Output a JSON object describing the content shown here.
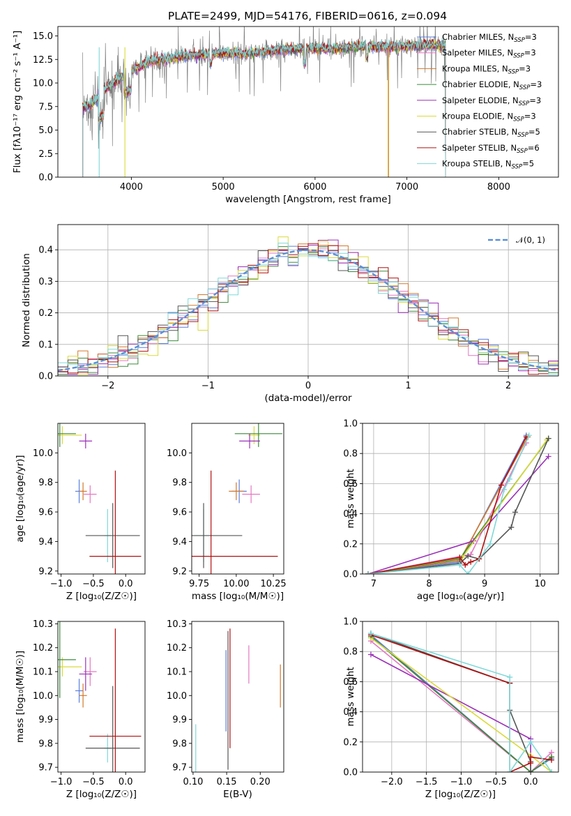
{
  "figure": {
    "title": "PLATE=2499, MJD=54176, FIBERID=0616, z=0.094"
  },
  "colors": {
    "Chabrier MILES": "#5b7fdc",
    "Salpeter MILES": "#e377c2",
    "Kroupa MILES": "#d2782d",
    "Chabrier ELODIE": "#3a8a3a",
    "Salpeter ELODIE": "#9b30b8",
    "Kroupa ELODIE": "#dada3a",
    "Chabrier STELIB": "#555555",
    "Salpeter STELIB": "#b01010",
    "Kroupa STELIB": "#7fd8d8",
    "data": "#808080",
    "normal": "#5b8fd6",
    "grid": "#b0b0b0"
  },
  "chart_data": [
    {
      "id": "spectrum",
      "type": "line",
      "title": "PLATE=2499, MJD=54176, FIBERID=0616, z=0.094",
      "xlabel": "wavelength [Angstrom, rest frame]",
      "ylabel": "Flux [fλ10⁻¹⁷ erg cm⁻² s⁻¹ A⁻¹]",
      "xlim": [
        3200,
        8650
      ],
      "ylim": [
        0,
        16
      ],
      "xticks": [
        4000,
        5000,
        6000,
        7000,
        8000
      ],
      "yticks": [
        0.0,
        2.5,
        5.0,
        7.5,
        10.0,
        12.5,
        15.0
      ],
      "grid": false,
      "legend_position": "upper-right",
      "data_range": [
        3470,
        7420
      ],
      "continuum": {
        "x": [
          3470,
          3550,
          3650,
          3750,
          3850,
          3950,
          4050,
          4200,
          4400,
          4600,
          4800,
          5000,
          5200,
          5400,
          5600,
          5800,
          6000,
          6200,
          6400,
          6600,
          6800,
          7000,
          7200,
          7420
        ],
        "y": [
          7.4,
          7.7,
          8.6,
          9.6,
          10.3,
          11.0,
          11.6,
          12.3,
          12.6,
          12.9,
          13.0,
          13.2,
          13.1,
          13.3,
          13.5,
          13.6,
          13.7,
          13.6,
          13.8,
          13.9,
          13.8,
          13.9,
          14.0,
          14.0
        ]
      },
      "series": [
        {
          "name": "Chabrier MILES, N_SSP=3",
          "label_main": "Chabrier MILES, N",
          "label_sub": "SSP",
          "label_end": "=3"
        },
        {
          "name": "Salpeter MILES, N_SSP=3",
          "label_main": "Salpeter MILES, N",
          "label_sub": "SSP",
          "label_end": "=3"
        },
        {
          "name": "Kroupa MILES, N_SSP=3",
          "label_main": "Kroupa MILES, N",
          "label_sub": "SSP",
          "label_end": "=3"
        },
        {
          "name": "Chabrier ELODIE, N_SSP=3",
          "label_main": "Chabrier ELODIE, N",
          "label_sub": "SSP",
          "label_end": "=3"
        },
        {
          "name": "Salpeter ELODIE, N_SSP=3",
          "label_main": "Salpeter ELODIE, N",
          "label_sub": "SSP",
          "label_end": "=3"
        },
        {
          "name": "Kroupa ELODIE, N_SSP=3",
          "label_main": "Kroupa ELODIE, N",
          "label_sub": "SSP",
          "label_end": "=3"
        },
        {
          "name": "Chabrier STELIB, N_SSP=5",
          "label_main": "Chabrier STELIB, N",
          "label_sub": "SSP",
          "label_end": "=5"
        },
        {
          "name": "Salpeter STELIB, N_SSP=6",
          "label_main": "Salpeter STELIB, N",
          "label_sub": "SSP",
          "label_end": "=6"
        },
        {
          "name": "Kroupa STELIB, N_SSP=5",
          "label_main": "Kroupa STELIB, N",
          "label_sub": "SSP",
          "label_end": "=5"
        }
      ]
    },
    {
      "id": "residuals",
      "type": "histogram",
      "xlabel": "(data-model)/error",
      "ylabel": "Normed distribution",
      "xlim": [
        -2.5,
        2.5
      ],
      "ylim": [
        0,
        0.48
      ],
      "xticks": [
        -2,
        -1,
        0,
        1,
        2
      ],
      "yticks": [
        0.0,
        0.1,
        0.2,
        0.3,
        0.4
      ],
      "grid": true,
      "legend_position": "upper-right",
      "bin_width": 0.1,
      "normal_label": "𝒩(0, 1)",
      "series_count": 9
    },
    {
      "id": "age_vs_Z",
      "type": "errorbar",
      "xlabel": "Z [log₁₀(Z/Z☉)]",
      "ylabel": "age  [log₁₀(age/yr)]",
      "xlim": [
        -1.05,
        0.3
      ],
      "ylim": [
        9.18,
        10.2
      ],
      "xticks": [
        -1.0,
        -0.5,
        0.0
      ],
      "yticks": [
        9.2,
        9.4,
        9.6,
        9.8,
        10.0
      ],
      "grid": false,
      "points": [
        {
          "series": "Chabrier MILES",
          "x": -0.72,
          "xerr": 0.06,
          "y": 9.74,
          "yerr": 0.08
        },
        {
          "series": "Kroupa MILES",
          "x": -0.66,
          "xerr": 0.06,
          "y": 9.74,
          "yerr": 0.06
        },
        {
          "series": "Salpeter MILES",
          "x": -0.55,
          "xerr": 0.1,
          "y": 9.72,
          "yerr": 0.06
        },
        {
          "series": "Kroupa ELODIE",
          "x": -0.98,
          "xerr": 0.3,
          "y": 10.12,
          "yerr": 0.06
        },
        {
          "series": "Chabrier ELODIE",
          "x": -1.02,
          "xerr": 0.25,
          "y": 10.13,
          "yerr": 0.09
        },
        {
          "series": "Salpeter ELODIE",
          "x": -0.62,
          "xerr": 0.1,
          "y": 10.08,
          "yerr": 0.05
        },
        {
          "series": "Kroupa STELIB",
          "x": -0.28,
          "xerr": 0.05,
          "y": 9.44,
          "yerr": 0.18
        },
        {
          "series": "Chabrier STELIB",
          "x": -0.2,
          "xerr": 0.42,
          "y": 9.44,
          "yerr": 0.22
        },
        {
          "series": "Salpeter STELIB",
          "x": -0.16,
          "xerr": 0.4,
          "y": 9.3,
          "yerr": 0.58
        }
      ]
    },
    {
      "id": "age_vs_mass",
      "type": "errorbar",
      "xlabel": "mass [log₁₀(M/M☉)]",
      "xlim": [
        9.7,
        10.32
      ],
      "ylim": [
        9.18,
        10.2
      ],
      "xticks": [
        9.75,
        10.0,
        10.25
      ],
      "yticks": [
        9.2,
        9.4,
        9.6,
        9.8,
        10.0
      ],
      "grid": false,
      "points": [
        {
          "series": "Chabrier MILES",
          "x": 10.02,
          "xerr": 0.05,
          "y": 9.74,
          "yerr": 0.08
        },
        {
          "series": "Kroupa MILES",
          "x": 10.0,
          "xerr": 0.05,
          "y": 9.74,
          "yerr": 0.06
        },
        {
          "series": "Salpeter MILES",
          "x": 10.1,
          "xerr": 0.06,
          "y": 9.72,
          "yerr": 0.06
        },
        {
          "series": "Kroupa ELODIE",
          "x": 10.12,
          "xerr": 0.04,
          "y": 10.12,
          "yerr": 0.06
        },
        {
          "series": "Chabrier ELODIE",
          "x": 10.15,
          "xerr": 0.16,
          "y": 10.13,
          "yerr": 0.09
        },
        {
          "series": "Salpeter ELODIE",
          "x": 10.09,
          "xerr": 0.07,
          "y": 10.08,
          "yerr": 0.05
        },
        {
          "series": "Kroupa STELIB",
          "x": 9.78,
          "xerr": 0.06,
          "y": 9.44,
          "yerr": 0.18
        },
        {
          "series": "Chabrier STELIB",
          "x": 9.78,
          "xerr": 0.26,
          "y": 9.44,
          "yerr": 0.22
        },
        {
          "series": "Salpeter STELIB",
          "x": 9.83,
          "xerr": 0.45,
          "y": 9.3,
          "yerr": 0.58
        }
      ]
    },
    {
      "id": "massweight_vs_age",
      "type": "line",
      "xlabel": "age  [log₁₀(age/yr)]",
      "ylabel": "mass weight",
      "xlim": [
        6.8,
        10.33
      ],
      "ylim": [
        0,
        1
      ],
      "xticks": [
        7,
        8,
        9,
        10
      ],
      "yticks": [
        0.0,
        0.2,
        0.4,
        0.6,
        0.8,
        1.0
      ],
      "grid": true,
      "series": [
        {
          "series": "Chabrier MILES",
          "x": [
            6.9,
            8.55,
            9.75
          ],
          "y": [
            0.0,
            0.08,
            0.92
          ]
        },
        {
          "series": "Salpeter MILES",
          "x": [
            6.9,
            8.75,
            9.75
          ],
          "y": [
            0.0,
            0.13,
            0.87
          ]
        },
        {
          "series": "Kroupa MILES",
          "x": [
            6.9,
            8.55,
            9.78
          ],
          "y": [
            0.0,
            0.09,
            0.91
          ]
        },
        {
          "series": "Chabrier ELODIE",
          "x": [
            6.9,
            8.55,
            10.15
          ],
          "y": [
            0.0,
            0.1,
            0.9
          ]
        },
        {
          "series": "Salpeter ELODIE",
          "x": [
            6.9,
            8.8,
            10.15
          ],
          "y": [
            0.0,
            0.22,
            0.78
          ]
        },
        {
          "series": "Kroupa ELODIE",
          "x": [
            6.9,
            8.6,
            10.12
          ],
          "y": [
            0.0,
            0.11,
            0.89
          ]
        },
        {
          "series": "Chabrier STELIB",
          "x": [
            6.9,
            8.55,
            8.7,
            8.9,
            9.48,
            9.55,
            10.15
          ],
          "y": [
            0.0,
            0.07,
            0.12,
            0.1,
            0.31,
            0.41,
            0.9
          ]
        },
        {
          "series": "Salpeter STELIB",
          "x": [
            6.9,
            8.55,
            8.65,
            8.75,
            8.9,
            9.3,
            9.75
          ],
          "y": [
            0.0,
            0.11,
            0.06,
            0.08,
            0.1,
            0.59,
            0.91
          ]
        },
        {
          "series": "Kroupa STELIB",
          "x": [
            6.9,
            8.55,
            8.7,
            9.1,
            9.35,
            9.45,
            9.8
          ],
          "y": [
            0.0,
            0.06,
            0.0,
            0.2,
            0.56,
            0.63,
            0.92
          ]
        }
      ]
    },
    {
      "id": "mass_vs_Z",
      "type": "errorbar",
      "xlabel": "Z [log₁₀(Z/Z☉)]",
      "ylabel": "mass [log₁₀(M/M☉)]",
      "xlim": [
        -1.05,
        0.3
      ],
      "ylim": [
        9.68,
        10.31
      ],
      "xticks": [
        -1.0,
        -0.5,
        0.0
      ],
      "yticks": [
        9.7,
        9.8,
        9.9,
        10.0,
        10.1,
        10.2,
        10.3
      ],
      "grid": false,
      "points": [
        {
          "series": "Chabrier MILES",
          "x": -0.72,
          "xerr": 0.06,
          "y": 10.02,
          "yerr": 0.05
        },
        {
          "series": "Kroupa MILES",
          "x": -0.66,
          "xerr": 0.06,
          "y": 10.0,
          "yerr": 0.05
        },
        {
          "series": "Salpeter MILES",
          "x": -0.55,
          "xerr": 0.1,
          "y": 10.1,
          "yerr": 0.06
        },
        {
          "series": "Kroupa ELODIE",
          "x": -0.98,
          "xerr": 0.3,
          "y": 10.12,
          "yerr": 0.04
        },
        {
          "series": "Chabrier ELODIE",
          "x": -1.02,
          "xerr": 0.25,
          "y": 10.15,
          "yerr": 0.16
        },
        {
          "series": "Salpeter ELODIE",
          "x": -0.62,
          "xerr": 0.1,
          "y": 10.09,
          "yerr": 0.07
        },
        {
          "series": "Kroupa STELIB",
          "x": -0.28,
          "xerr": 0.05,
          "y": 9.78,
          "yerr": 0.06
        },
        {
          "series": "Chabrier STELIB",
          "x": -0.2,
          "xerr": 0.42,
          "y": 9.78,
          "yerr": 0.26
        },
        {
          "series": "Salpeter STELIB",
          "x": -0.16,
          "xerr": 0.4,
          "y": 9.83,
          "yerr": 0.45
        }
      ]
    },
    {
      "id": "mass_vs_EBV",
      "type": "errorbar",
      "xlabel": "E(B-V)",
      "xlim": [
        0.098,
        0.235
      ],
      "ylim": [
        9.68,
        10.31
      ],
      "xticks": [
        0.1,
        0.15,
        0.2
      ],
      "yticks": [
        9.7,
        9.8,
        9.9,
        10.0,
        10.1,
        10.2,
        10.3
      ],
      "grid": false,
      "points": [
        {
          "series": "Kroupa STELIB",
          "x": 0.104,
          "y": 9.78,
          "yerr": 0.1
        },
        {
          "series": "Chabrier MILES",
          "x": 0.149,
          "y": 10.02,
          "yerr": 0.17
        },
        {
          "series": "Chabrier STELIB",
          "x": 0.152,
          "y": 9.98,
          "yerr": 0.29
        },
        {
          "series": "Salpeter STELIB",
          "x": 0.155,
          "y": 10.03,
          "yerr": 0.25
        },
        {
          "series": "Salpeter MILES",
          "x": 0.183,
          "y": 10.13,
          "yerr": 0.08
        },
        {
          "series": "Kroupa MILES",
          "x": 0.23,
          "y": 10.04,
          "yerr": 0.09
        }
      ]
    },
    {
      "id": "massweight_vs_Z",
      "type": "line",
      "xlabel": "Z [log₁₀(Z/Z☉)]",
      "ylabel": "mass weight",
      "xlim": [
        -2.42,
        0.4
      ],
      "ylim": [
        0,
        1
      ],
      "xticks": [
        -2.0,
        -1.5,
        -1.0,
        -0.5,
        0.0
      ],
      "yticks": [
        0.0,
        0.2,
        0.4,
        0.6,
        0.8,
        1.0
      ],
      "grid": true,
      "series": [
        {
          "series": "Chabrier MILES",
          "x": [
            -2.3,
            0.0,
            0.3
          ],
          "y": [
            0.91,
            0.0,
            0.09
          ]
        },
        {
          "series": "Salpeter MILES",
          "x": [
            -2.3,
            0.0,
            0.3
          ],
          "y": [
            0.87,
            0.0,
            0.13
          ]
        },
        {
          "series": "Kroupa MILES",
          "x": [
            -2.3,
            0.0,
            0.3
          ],
          "y": [
            0.9,
            0.0,
            0.1
          ]
        },
        {
          "series": "Chabrier ELODIE",
          "x": [
            -2.3,
            0.0,
            0.3
          ],
          "y": [
            0.9,
            0.0,
            0.1
          ]
        },
        {
          "series": "Salpeter ELODIE",
          "x": [
            -2.3,
            0.0,
            0.0
          ],
          "y": [
            0.78,
            0.22,
            0.0
          ]
        },
        {
          "series": "Kroupa ELODIE",
          "x": [
            -2.3,
            0.0,
            0.3
          ],
          "y": [
            0.89,
            0.11,
            0.0
          ]
        },
        {
          "series": "Chabrier STELIB",
          "x": [
            -2.3,
            -0.3,
            -0.3,
            0.0,
            0.0
          ],
          "y": [
            0.92,
            0.59,
            0.41,
            0.07,
            0.0
          ]
        },
        {
          "series": "Salpeter STELIB",
          "x": [
            -2.3,
            -0.3,
            -0.3,
            0.0,
            0.0,
            0.3
          ],
          "y": [
            0.91,
            0.59,
            0.0,
            0.06,
            0.1,
            0.08
          ]
        },
        {
          "series": "Kroupa STELIB",
          "x": [
            -2.3,
            -0.3,
            -0.3,
            0.0,
            0.3
          ],
          "y": [
            0.92,
            0.63,
            0.0,
            0.2,
            0.0
          ]
        }
      ]
    }
  ]
}
